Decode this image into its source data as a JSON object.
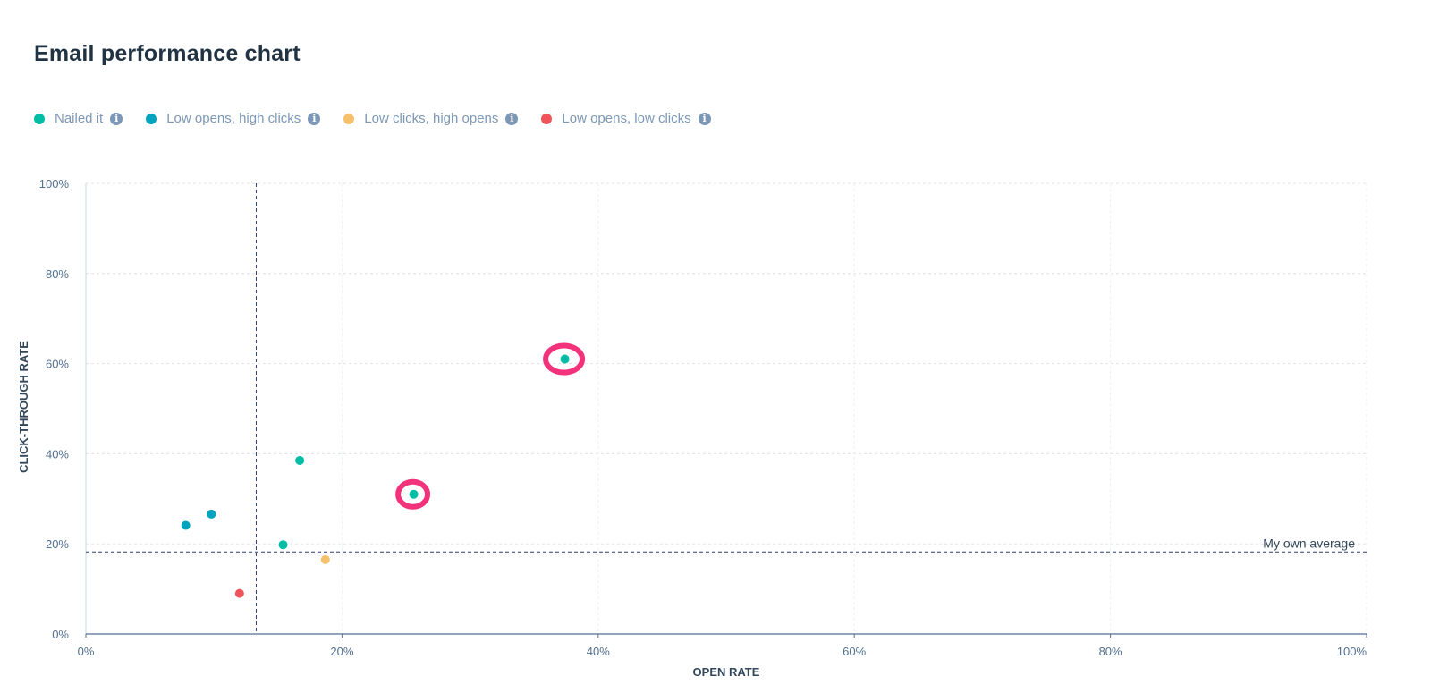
{
  "page": {
    "title": "Email performance chart"
  },
  "legend": [
    {
      "label": "Nailed it",
      "color": "#00bda5",
      "info_icon": "info-icon"
    },
    {
      "label": "Low opens, high clicks",
      "color": "#00a4bd",
      "info_icon": "info-icon"
    },
    {
      "label": "Low clicks, high opens",
      "color": "#f5c26b",
      "info_icon": "info-icon"
    },
    {
      "label": "Low opens, low clicks",
      "color": "#f2545b",
      "info_icon": "info-icon"
    }
  ],
  "chart_data": {
    "type": "scatter",
    "title": "Email performance chart",
    "xlabel": "OPEN RATE",
    "ylabel": "CLICK-THROUGH RATE",
    "xlim": [
      0,
      100
    ],
    "ylim": [
      0,
      100
    ],
    "x_ticks": [
      "0%",
      "20%",
      "40%",
      "60%",
      "80%",
      "100%"
    ],
    "y_ticks": [
      "0%",
      "20%",
      "40%",
      "60%",
      "80%",
      "100%"
    ],
    "grid": true,
    "legend_position": "top-left",
    "series": [
      {
        "name": "Nailed it",
        "color": "#00bda5",
        "points": [
          {
            "x": 37.4,
            "y": 61,
            "highlighted": true
          },
          {
            "x": 25.6,
            "y": 31,
            "highlighted": true
          },
          {
            "x": 16.7,
            "y": 38.5
          },
          {
            "x": 15.4,
            "y": 19.8
          }
        ]
      },
      {
        "name": "Low opens, high clicks",
        "color": "#00a4bd",
        "points": [
          {
            "x": 7.8,
            "y": 24.1
          },
          {
            "x": 9.8,
            "y": 26.6
          }
        ]
      },
      {
        "name": "Low clicks, high opens",
        "color": "#f5c26b",
        "points": [
          {
            "x": 18.7,
            "y": 16.5
          }
        ]
      },
      {
        "name": "Low opens, low clicks",
        "color": "#f2545b",
        "points": [
          {
            "x": 12.0,
            "y": 9.0
          }
        ]
      }
    ],
    "reference_lines": {
      "x_average": 13.3,
      "y_average": 18.2,
      "label": "My own average"
    },
    "highlight_color": "#f2327a"
  }
}
